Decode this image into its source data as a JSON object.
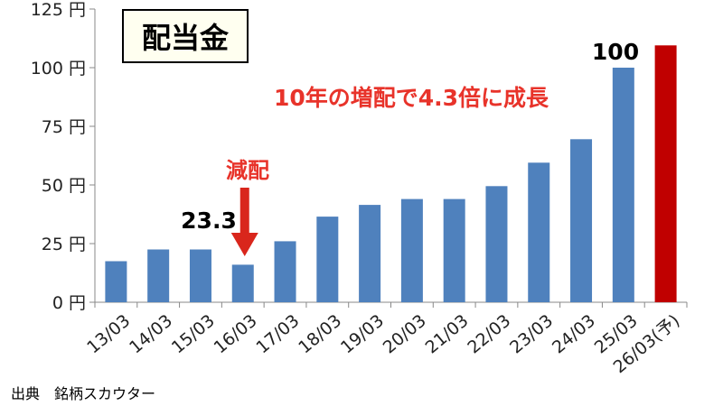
{
  "source_text": "出典　銘柄スカウター",
  "chart_data": {
    "type": "bar",
    "title": "配当金",
    "categories": [
      "13/03",
      "14/03",
      "15/03",
      "16/03",
      "17/03",
      "18/03",
      "19/03",
      "20/03",
      "21/03",
      "22/03",
      "23/03",
      "24/03",
      "25/03",
      "26/03(予)"
    ],
    "values": [
      17.5,
      22.5,
      22.5,
      16,
      26,
      36.5,
      41.5,
      44,
      44,
      49.5,
      59.5,
      69.5,
      100,
      109.5
    ],
    "bar_colors": [
      "#4f81bd",
      "#4f81bd",
      "#4f81bd",
      "#4f81bd",
      "#4f81bd",
      "#4f81bd",
      "#4f81bd",
      "#4f81bd",
      "#4f81bd",
      "#4f81bd",
      "#4f81bd",
      "#4f81bd",
      "#4f81bd",
      "#c00000"
    ],
    "ylim": [
      0,
      125
    ],
    "y_ticks": [
      0,
      25,
      50,
      75,
      100,
      125
    ],
    "y_tick_suffix": " 円",
    "grid": false,
    "annotations": {
      "headline": "10年の増配で4.3倍に成長",
      "cut_label": "減配",
      "cut_value": "23.3",
      "last_value": "100"
    },
    "colors": {
      "accent_red": "#e8332a",
      "arrow_red": "#d9261c",
      "blue": "#4f81bd",
      "forecast_red": "#c00000"
    }
  }
}
